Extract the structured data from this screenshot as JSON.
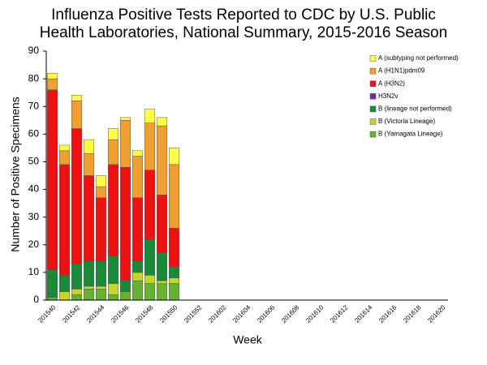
{
  "chart_data": {
    "type": "stacked_bar",
    "title": "Influenza Positive Tests Reported to CDC by U.S. Public Health Laboratories, National Summary, 2015-2016 Season",
    "x_label": "Week",
    "y_label": "Number of Positive Specimens",
    "categories": [
      "201540",
      null,
      "201542",
      null,
      "201544",
      null,
      "201546",
      null,
      "201548",
      null,
      "201550",
      null,
      "201552",
      null,
      "201602",
      null,
      "201604",
      null,
      "201606",
      null,
      "201608",
      null,
      "201610",
      null,
      "201612",
      null,
      "201614",
      null,
      "201616",
      null,
      "201618",
      null,
      "201620"
    ],
    "ylim": [
      0,
      90
    ],
    "yticks": [
      0,
      10,
      20,
      30,
      40,
      50,
      60,
      70,
      80,
      90
    ],
    "grid": false,
    "legend": "upper right",
    "series": [
      {
        "name": "A (subtyping not performed)",
        "color": "#ffff44",
        "values": [
          2,
          2,
          2,
          5,
          4,
          4,
          1,
          2,
          5,
          3,
          6,
          null,
          null,
          null,
          null,
          null,
          null,
          null,
          null,
          null,
          null,
          null,
          null,
          null,
          null,
          null,
          null,
          null,
          null,
          null,
          null,
          null,
          null
        ]
      },
      {
        "name": "A (H1N1)pdm09",
        "color": "#f0a030",
        "values": [
          4,
          5,
          10,
          8,
          4,
          9,
          17,
          15,
          17,
          25,
          23,
          null,
          null,
          null,
          null,
          null,
          null,
          null,
          null,
          null,
          null,
          null,
          null,
          null,
          null,
          null,
          null,
          null,
          null,
          null,
          null,
          null,
          null
        ]
      },
      {
        "name": "A (H3N2)",
        "color": "#ee1111",
        "values": [
          65,
          40,
          49,
          31,
          23,
          33,
          41,
          23,
          25,
          21,
          14,
          null,
          null,
          null,
          null,
          null,
          null,
          null,
          null,
          null,
          null,
          null,
          null,
          null,
          null,
          null,
          null,
          null,
          null,
          null,
          null,
          null,
          null
        ]
      },
      {
        "name": "H3N2v",
        "color": "#7030a0",
        "values": [
          0,
          0,
          0,
          0,
          0,
          0,
          0,
          0,
          0,
          0,
          0,
          null,
          null,
          null,
          null,
          null,
          null,
          null,
          null,
          null,
          null,
          null,
          null,
          null,
          null,
          null,
          null,
          null,
          null,
          null,
          null,
          null,
          null
        ]
      },
      {
        "name": "B (lineage not performed)",
        "color": "#1a8a3a",
        "values": [
          10,
          6,
          9,
          9,
          9,
          10,
          4,
          4,
          13,
          10,
          4,
          null,
          null,
          null,
          null,
          null,
          null,
          null,
          null,
          null,
          null,
          null,
          null,
          null,
          null,
          null,
          null,
          null,
          null,
          null,
          null,
          null,
          null
        ]
      },
      {
        "name": "B (Victoria Lineage)",
        "color": "#c4d82c",
        "values": [
          0,
          3,
          2,
          1,
          1,
          4,
          0,
          3,
          3,
          1,
          2,
          null,
          null,
          null,
          null,
          null,
          null,
          null,
          null,
          null,
          null,
          null,
          null,
          null,
          null,
          null,
          null,
          null,
          null,
          null,
          null,
          null,
          null
        ]
      },
      {
        "name": "B (Yamagata Lineage)",
        "color": "#66b032",
        "values": [
          1,
          0,
          2,
          4,
          4,
          2,
          3,
          7,
          6,
          6,
          6,
          null,
          null,
          null,
          null,
          null,
          null,
          null,
          null,
          null,
          null,
          null,
          null,
          null,
          null,
          null,
          null,
          null,
          null,
          null,
          null,
          null,
          null
        ]
      }
    ]
  }
}
